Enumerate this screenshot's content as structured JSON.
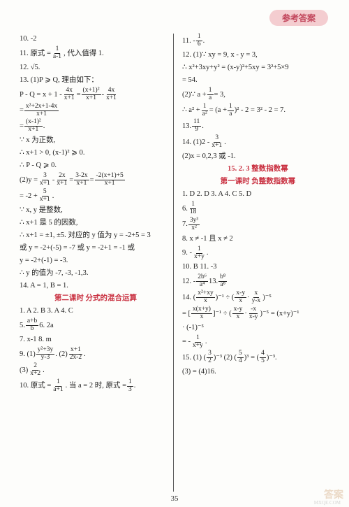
{
  "header": {
    "badge": "参考答案"
  },
  "left": {
    "l1": "10. -2",
    "l2a": "11. 原式 = ",
    "l2f_n": "1",
    "l2f_d": "a-1",
    "l2b": ", 代入值得 1.",
    "l3a": "12. ",
    "l3b": "√5",
    "l3c": ".",
    "l4": "13. (1)P ⩾ Q, 理由如下：",
    "l5a": "P - Q = x + 1 - ",
    "l5f1n": "4x",
    "l5f1d": "x+1",
    "l5b": " = ",
    "l5f2n": "(x+1)²",
    "l5f2d": "x+1",
    "l5c": " - ",
    "l5f3n": "4x",
    "l5f3d": "x+1",
    "l6a": " = ",
    "l6fn": "x²+2x+1-4x",
    "l6fd": "x+1",
    "l7a": " = ",
    "l7fn": "(x-1)²",
    "l7fd": "x+1",
    "l7b": ".",
    "l8": "∵ x 为正数,",
    "l9": "∴ x+1 > 0, (x-1)² ⩾ 0.",
    "l10": "∴ P - Q ⩾ 0.",
    "l11a": "(2)y = ",
    "l11f1n": "3",
    "l11f1d": "x+1",
    "l11b": " - ",
    "l11f2n": "2x",
    "l11f2d": "x+1",
    "l11c": " = ",
    "l11f3n": "3-2x",
    "l11f3d": "x+1",
    "l11d": " = ",
    "l11f4n": "-2(x+1)+5",
    "l11f4d": "x+1",
    "l12a": " = -2 + ",
    "l12fn": "5",
    "l12fd": "x+1",
    "l12b": ".",
    "l13": "∵ x, y 是整数,",
    "l14": "∴ x+1 是 5 的因数,",
    "l15": "∴ x+1 = ±1, ±5. 对应的 y 值为 y = -2+5 = 3",
    "l16": "或 y = -2+(-5) = -7 或 y = -2+1 = -1 或",
    "l17": "y = -2+(-1) = -3.",
    "l18": "∴ y 的值为 -7, -3, -1,3.",
    "l19": "14. A = 1, B = 1.",
    "l20": "第二课时  分式的混合运算",
    "l21": "1. A  2. B  3. A  4. C",
    "l22a": "5. ",
    "l22fn": "a+b",
    "l22fd": "b",
    "l22b": "  6. 2a",
    "l23": "7. x-1  8. m",
    "l24a": "9. (1)",
    "l24f1n": "y²+3y",
    "l24f1d": "y-3",
    "l24b": ".  (2)",
    "l24f2n": "x+1",
    "l24f2d": "2x-2",
    "l24c": ".",
    "l25a": "(3)",
    "l25fn": "2",
    "l25fd": "x+2",
    "l25b": ".",
    "l26a": "10. 原式 = ",
    "l26fn": "1",
    "l26fd": "a+1",
    "l26b": ". 当 a = 2 时, 原式 = ",
    "l26f2n": "1",
    "l26f2d": "3",
    "l26c": "."
  },
  "right": {
    "r1a": "11. -",
    "r1fn": "1",
    "r1fd": "6",
    "r1b": ".",
    "r2": "12. (1)∵ xy = 9, x - y = 3,",
    "r3": "∴ x²+3xy+y² = (x-y)²+5xy = 3²+5×9",
    "r4": "= 54.",
    "r5a": "(2)∵ a + ",
    "r5fn": "1",
    "r5fd": "a",
    "r5b": " = 3,",
    "r6a": "∴ a² + ",
    "r6fn": "1",
    "r6fd": "a²",
    "r6b": " = (a + ",
    "r6f2n": "1",
    "r6f2d": "a",
    "r6c": ")² - 2 = 3² - 2 = 7.",
    "r7a": "13. ",
    "r7fn": "11",
    "r7fd": "9",
    "r7b": ".",
    "r8a": "14. (1)2 - ",
    "r8fn": "3",
    "r8fd": "x+1",
    "r8b": ".",
    "r9": "(2)x = 0,2,3 或 -1.",
    "r10": "15. 2. 3  整数指数幂",
    "r11": "第一课时  负整数指数幂",
    "r12": "1. D  2. D  3. A  4. C  5. D",
    "r13a": "6. ",
    "r13fn": "1",
    "r13fd": "18",
    "r14a": "7. ",
    "r14fn": "3y³",
    "r14fd": "x²",
    "r15": "8. x ≠ -1 且 x ≠ 2",
    "r16a": "9. -",
    "r16fn": "1",
    "r16fd": "x+y",
    "r16b": ".",
    "r17": "10. B  11. -3",
    "r18a": "12. -",
    "r18fn": "2b⁶",
    "r18fd": "a⁴",
    "r18b": "  13. ",
    "r18f2n": "b⁸",
    "r18f2d": "a⁸",
    "r19a": "14. (",
    "r19f1n": "x²+xy",
    "r19f1d": "x",
    "r19b": ")⁻¹ ÷ (",
    "r19f2n": "x-y",
    "r19f2d": "x",
    "r19c": " · ",
    "r19f3n": "x",
    "r19f3d": "y-x",
    "r19d": ")⁻⁵",
    "r20a": "= [",
    "r20f1n": "x(x+y)",
    "r20f1d": "x",
    "r20b": "]⁻¹ ÷ (",
    "r20f2n": "x-y",
    "r20f2d": "x",
    "r20c": " · ",
    "r20f3n": "-x",
    "r20f3d": "x-y",
    "r20d": ")⁻⁵ = (x+y)⁻¹",
    "r21": "· (-1)⁻⁵",
    "r22a": "= -",
    "r22fn": "1",
    "r22fd": "x+y",
    "r22b": ".",
    "r23a": "15. (1) (",
    "r23f1n": "3",
    "r23f1d": "2",
    "r23b": ")⁻³  (2) (",
    "r23f2n": "5",
    "r23f2d": "4",
    "r23c": ")³ = (",
    "r23f3n": "4",
    "r23f3d": "5",
    "r23d": ")⁻³.",
    "r24": "(3) =   (4)16."
  },
  "footer": {
    "pagenum": "35",
    "watermark": "答案",
    "sub": "MXQE.COM"
  }
}
